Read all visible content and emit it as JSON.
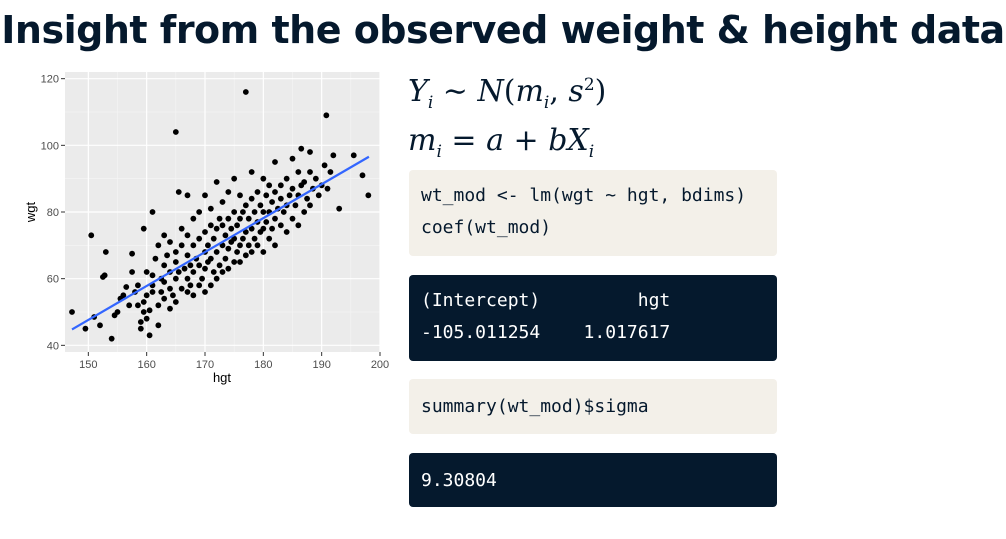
{
  "slide": {
    "title": "Insight from the observed weight & height data"
  },
  "equations": {
    "line1": {
      "Y": "Y",
      "i": "i",
      "sim": " ∼ ",
      "N": "N",
      "open": "(",
      "m": "m",
      "comma": ", ",
      "s": "s",
      "two": "2",
      "close": ")"
    },
    "line2": {
      "m": "m",
      "i": "i",
      "eq": " = ",
      "a": "a",
      "plus": " + ",
      "bX": "bX",
      "i2": "i"
    }
  },
  "code": {
    "block1": [
      "wt_mod <- lm(wgt ~ hgt, bdims)",
      "coef(wt_mod)"
    ],
    "output1": [
      "(Intercept)         hgt",
      "-105.011254    1.017617"
    ],
    "block2": [
      "summary(wt_mod)$sigma"
    ],
    "output2": [
      "9.30804"
    ]
  },
  "colors": {
    "title": "#05192d",
    "code_bg": "#f3f0e9",
    "output_bg": "#05192d",
    "panel_bg": "#ebebeb",
    "point": "#000000",
    "fit_line": "#3366ff"
  },
  "chart_data": {
    "type": "scatter",
    "xlabel": "hgt",
    "ylabel": "wgt",
    "xlim": [
      146,
      200
    ],
    "ylim": [
      38,
      122
    ],
    "xticks": [
      150,
      160,
      170,
      180,
      190,
      200
    ],
    "yticks": [
      40,
      60,
      80,
      100,
      120
    ],
    "grid": true,
    "fit_line": {
      "intercept": -105.011254,
      "slope": 1.017617,
      "x_range": [
        147.2,
        198.1
      ]
    },
    "points": [
      [
        147.2,
        50
      ],
      [
        149.5,
        45
      ],
      [
        150.5,
        73
      ],
      [
        151,
        48.5
      ],
      [
        152,
        46
      ],
      [
        152.5,
        60.5
      ],
      [
        152.8,
        61
      ],
      [
        153,
        68
      ],
      [
        154,
        42
      ],
      [
        154.5,
        49
      ],
      [
        155,
        50
      ],
      [
        155.5,
        54
      ],
      [
        156,
        55
      ],
      [
        156.5,
        57.5
      ],
      [
        157,
        52
      ],
      [
        157.5,
        62
      ],
      [
        157.5,
        67.5
      ],
      [
        158,
        56
      ],
      [
        158.5,
        52
      ],
      [
        158.5,
        58
      ],
      [
        159,
        45
      ],
      [
        159,
        47
      ],
      [
        159.5,
        50
      ],
      [
        159.5,
        53
      ],
      [
        159.5,
        75
      ],
      [
        160,
        48
      ],
      [
        160,
        55
      ],
      [
        160,
        62
      ],
      [
        160.5,
        43
      ],
      [
        160.5,
        50.5
      ],
      [
        161,
        56
      ],
      [
        161,
        58
      ],
      [
        161,
        61
      ],
      [
        161,
        80
      ],
      [
        161.5,
        66
      ],
      [
        162,
        46
      ],
      [
        162,
        52
      ],
      [
        162,
        70
      ],
      [
        162.5,
        56
      ],
      [
        162.5,
        60
      ],
      [
        163,
        54
      ],
      [
        163,
        59
      ],
      [
        163,
        64
      ],
      [
        163,
        73
      ],
      [
        163.5,
        67
      ],
      [
        164,
        51
      ],
      [
        164,
        57
      ],
      [
        164,
        62
      ],
      [
        164,
        71
      ],
      [
        164.5,
        55
      ],
      [
        165,
        53
      ],
      [
        165,
        60
      ],
      [
        165,
        65
      ],
      [
        165,
        68
      ],
      [
        165,
        104
      ],
      [
        165.5,
        62
      ],
      [
        165.5,
        86
      ],
      [
        166,
        57
      ],
      [
        166,
        70
      ],
      [
        166,
        75
      ],
      [
        166.5,
        63
      ],
      [
        167,
        56
      ],
      [
        167,
        60
      ],
      [
        167,
        67
      ],
      [
        167,
        73
      ],
      [
        167,
        85
      ],
      [
        167.5,
        58
      ],
      [
        167.5,
        64
      ],
      [
        168,
        55
      ],
      [
        168,
        62
      ],
      [
        168,
        70
      ],
      [
        168,
        78
      ],
      [
        168.5,
        66
      ],
      [
        169,
        58
      ],
      [
        169,
        64
      ],
      [
        169,
        72
      ],
      [
        169,
        80
      ],
      [
        169.5,
        60
      ],
      [
        170,
        56
      ],
      [
        170,
        63
      ],
      [
        170,
        68
      ],
      [
        170,
        74
      ],
      [
        170,
        85
      ],
      [
        170.5,
        65
      ],
      [
        170.5,
        70
      ],
      [
        171,
        58
      ],
      [
        171,
        66
      ],
      [
        171,
        76
      ],
      [
        171,
        81
      ],
      [
        171.5,
        62
      ],
      [
        171.5,
        72
      ],
      [
        172,
        60
      ],
      [
        172,
        68
      ],
      [
        172,
        75
      ],
      [
        172,
        89
      ],
      [
        172.5,
        64
      ],
      [
        172.5,
        78
      ],
      [
        173,
        62
      ],
      [
        173,
        70
      ],
      [
        173,
        76
      ],
      [
        173,
        83
      ],
      [
        173.5,
        66
      ],
      [
        173.5,
        73
      ],
      [
        174,
        63
      ],
      [
        174,
        69
      ],
      [
        174,
        78
      ],
      [
        174,
        86
      ],
      [
        174.5,
        71
      ],
      [
        174.5,
        75
      ],
      [
        175,
        65
      ],
      [
        175,
        72
      ],
      [
        175,
        80
      ],
      [
        175,
        90
      ],
      [
        175.5,
        68
      ],
      [
        175.5,
        76
      ],
      [
        176,
        65
      ],
      [
        176,
        70
      ],
      [
        176,
        78
      ],
      [
        176,
        85
      ],
      [
        176.5,
        72
      ],
      [
        176.5,
        80
      ],
      [
        177,
        67
      ],
      [
        177,
        74
      ],
      [
        177,
        82
      ],
      [
        177,
        116
      ],
      [
        177.5,
        70
      ],
      [
        177.5,
        78
      ],
      [
        178,
        68
      ],
      [
        178,
        75
      ],
      [
        178,
        84
      ],
      [
        178,
        92
      ],
      [
        178.5,
        72
      ],
      [
        178.5,
        80
      ],
      [
        179,
        70
      ],
      [
        179,
        77
      ],
      [
        179,
        86
      ],
      [
        179.5,
        74
      ],
      [
        179.5,
        82
      ],
      [
        180,
        68
      ],
      [
        180,
        75
      ],
      [
        180,
        80
      ],
      [
        180,
        90
      ],
      [
        180.5,
        77
      ],
      [
        180.5,
        85
      ],
      [
        181,
        72
      ],
      [
        181,
        80
      ],
      [
        181,
        88
      ],
      [
        181.5,
        75
      ],
      [
        181.5,
        83
      ],
      [
        182,
        70
      ],
      [
        182,
        78
      ],
      [
        182,
        86
      ],
      [
        182,
        95
      ],
      [
        182.5,
        81
      ],
      [
        183,
        76
      ],
      [
        183,
        84
      ],
      [
        183,
        88
      ],
      [
        183.5,
        80
      ],
      [
        184,
        74
      ],
      [
        184,
        82
      ],
      [
        184,
        90
      ],
      [
        184.5,
        85
      ],
      [
        185,
        78
      ],
      [
        185,
        87
      ],
      [
        185,
        96
      ],
      [
        185.5,
        82
      ],
      [
        186,
        76
      ],
      [
        186,
        85
      ],
      [
        186,
        92
      ],
      [
        186.5,
        88
      ],
      [
        187,
        80
      ],
      [
        187,
        89
      ],
      [
        187.5,
        84
      ],
      [
        188,
        82
      ],
      [
        188,
        92
      ],
      [
        188.5,
        87
      ],
      [
        189,
        90
      ],
      [
        189.5,
        85
      ],
      [
        190,
        88
      ],
      [
        190.5,
        94
      ],
      [
        190.8,
        109
      ],
      [
        191,
        87
      ],
      [
        191.5,
        92
      ],
      [
        192,
        97
      ],
      [
        193,
        81
      ],
      [
        195.5,
        97
      ],
      [
        197,
        91
      ],
      [
        198,
        85
      ],
      [
        186.5,
        99
      ],
      [
        188,
        98
      ]
    ]
  }
}
